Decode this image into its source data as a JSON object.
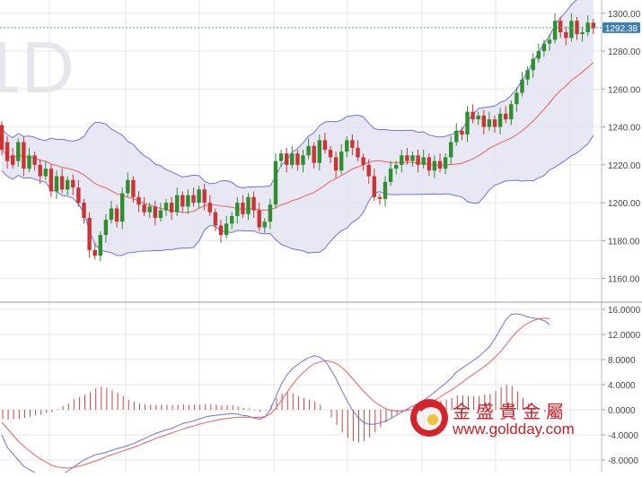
{
  "colors": {
    "up": "#2f8f2f",
    "down": "#cc3333",
    "band_line": "#6f6fe6",
    "band_fill": "#e4e4f2",
    "ma_mid": "#e86060",
    "grid": "#e6e6e6",
    "dotline": "#4caf7a",
    "current_bg": "#3d7fb5",
    "dif": "#6f6fe6",
    "dea": "#e86060",
    "hist": "#cc4444"
  },
  "watermark": {
    "text": "1D"
  },
  "logo": {
    "chinese": "金盛貴金屬",
    "url": "www.goldday.com"
  },
  "chart_data": [
    {
      "type": "candlestick",
      "ylim": [
        1148,
        1307
      ],
      "y_ticks": [
        "1300.00",
        "1280.00",
        "1260.00",
        "1240.00",
        "1220.00",
        "1200.00",
        "1180.00",
        "1160.00"
      ],
      "current_price": 1292.38,
      "current_label": "1292.38",
      "overlays": [
        "bollinger_bands",
        "moving_average"
      ],
      "candles": [
        [
          1241,
          1228
        ],
        [
          1232,
          1222
        ],
        [
          1225,
          1220
        ],
        [
          1222,
          1232
        ],
        [
          1232,
          1218
        ],
        [
          1218,
          1225
        ],
        [
          1225,
          1220
        ],
        [
          1220,
          1214
        ],
        [
          1214,
          1218
        ],
        [
          1218,
          1206
        ],
        [
          1206,
          1214
        ],
        [
          1214,
          1207
        ],
        [
          1207,
          1212
        ],
        [
          1212,
          1208
        ],
        [
          1208,
          1200
        ],
        [
          1200,
          1192
        ],
        [
          1192,
          1175
        ],
        [
          1175,
          1172
        ],
        [
          1172,
          1183
        ],
        [
          1183,
          1191
        ],
        [
          1191,
          1197
        ],
        [
          1197,
          1190
        ],
        [
          1190,
          1205
        ],
        [
          1205,
          1212
        ],
        [
          1212,
          1203
        ],
        [
          1203,
          1199
        ],
        [
          1199,
          1195
        ],
        [
          1195,
          1198
        ],
        [
          1198,
          1192
        ],
        [
          1192,
          1196
        ],
        [
          1196,
          1200
        ],
        [
          1200,
          1195
        ],
        [
          1195,
          1204
        ],
        [
          1204,
          1198
        ],
        [
          1198,
          1204
        ],
        [
          1204,
          1200
        ],
        [
          1200,
          1207
        ],
        [
          1207,
          1200
        ],
        [
          1200,
          1195
        ],
        [
          1195,
          1188
        ],
        [
          1188,
          1183
        ],
        [
          1183,
          1189
        ],
        [
          1189,
          1193
        ],
        [
          1193,
          1200
        ],
        [
          1200,
          1194
        ],
        [
          1194,
          1203
        ],
        [
          1203,
          1196
        ],
        [
          1196,
          1187
        ],
        [
          1187,
          1190
        ],
        [
          1190,
          1199
        ],
        [
          1199,
          1222
        ],
        [
          1222,
          1226
        ],
        [
          1226,
          1220
        ],
        [
          1220,
          1226
        ],
        [
          1226,
          1220
        ],
        [
          1220,
          1225
        ],
        [
          1225,
          1230
        ],
        [
          1230,
          1221
        ],
        [
          1221,
          1233
        ],
        [
          1233,
          1228
        ],
        [
          1228,
          1224
        ],
        [
          1224,
          1217
        ],
        [
          1217,
          1227
        ],
        [
          1227,
          1233
        ],
        [
          1233,
          1229
        ],
        [
          1229,
          1224
        ],
        [
          1224,
          1220
        ],
        [
          1220,
          1214
        ],
        [
          1214,
          1203
        ],
        [
          1203,
          1202
        ],
        [
          1202,
          1211
        ],
        [
          1211,
          1218
        ],
        [
          1218,
          1220
        ],
        [
          1220,
          1225
        ],
        [
          1225,
          1222
        ],
        [
          1222,
          1225
        ],
        [
          1225,
          1220
        ],
        [
          1220,
          1224
        ],
        [
          1224,
          1217
        ],
        [
          1217,
          1222
        ],
        [
          1222,
          1218
        ],
        [
          1218,
          1224
        ],
        [
          1224,
          1232
        ],
        [
          1232,
          1238
        ],
        [
          1238,
          1236
        ],
        [
          1236,
          1248
        ],
        [
          1248,
          1244
        ],
        [
          1244,
          1246
        ],
        [
          1246,
          1240
        ],
        [
          1240,
          1244
        ],
        [
          1244,
          1240
        ],
        [
          1240,
          1247
        ],
        [
          1247,
          1244
        ],
        [
          1244,
          1252
        ],
        [
          1252,
          1258
        ],
        [
          1258,
          1265
        ],
        [
          1265,
          1270
        ],
        [
          1270,
          1276
        ],
        [
          1276,
          1280
        ],
        [
          1280,
          1284
        ],
        [
          1284,
          1286
        ],
        [
          1286,
          1296
        ],
        [
          1296,
          1290
        ],
        [
          1290,
          1287
        ],
        [
          1287,
          1296
        ],
        [
          1296,
          1289
        ],
        [
          1289,
          1290
        ],
        [
          1290,
          1295
        ],
        [
          1295,
          1292
        ]
      ]
    },
    {
      "type": "macd",
      "ylim": [
        -10,
        17
      ],
      "y_ticks": [
        "16.0000",
        "12.0000",
        "8.0000",
        "4.0000",
        "0.0000",
        "-4.0000",
        "-8.0000"
      ],
      "series": [
        {
          "values": [
            -4,
            -6,
            -7,
            -8,
            -9,
            -9.5,
            -10,
            -10.5,
            -10.8,
            -11,
            -10.8,
            -10.3,
            -9.8,
            -9.2,
            -8.6,
            -8,
            -7.6,
            -7.2,
            -7,
            -6.8,
            -6.5,
            -6.2,
            -6,
            -5.7,
            -5.4,
            -5,
            -4.6,
            -4.2,
            -3.8,
            -3.5,
            -3.2,
            -3,
            -2.6,
            -2.2,
            -2,
            -1.8,
            -1.5,
            -1.2,
            -1,
            -0.9,
            -0.8,
            -0.7,
            -0.6,
            -0.7,
            -0.9,
            -1,
            -1.3,
            -1.5,
            -1.2,
            0,
            2,
            4,
            5.5,
            6.5,
            7.2,
            7.8,
            8.3,
            8.6,
            8.4,
            7.8,
            6.5,
            5,
            3.2,
            1.5,
            0,
            -1.2,
            -2,
            -2.3,
            -2.3,
            -2.1,
            -1.8,
            -1.4,
            -0.9,
            -0.4,
            0.1,
            0.6,
            1,
            1.5,
            2.1,
            2.8,
            3.5,
            4.2,
            5,
            6,
            6.6,
            7.2,
            7.8,
            8.4,
            9.2,
            10,
            11.3,
            12.8,
            14.3,
            15.2,
            15.3,
            15.1,
            14.8,
            14.6,
            14.5,
            14.2,
            13.6
          ],
          "color": "dif"
        },
        {
          "values": [
            -2,
            -3,
            -4,
            -5,
            -5.8,
            -6.5,
            -7.2,
            -7.8,
            -8.3,
            -8.8,
            -9.1,
            -9.2,
            -9.3,
            -9.2,
            -9,
            -8.8,
            -8.5,
            -8.2,
            -7.9,
            -7.5,
            -7.2,
            -6.9,
            -6.6,
            -6.3,
            -6,
            -5.7,
            -5.3,
            -5,
            -4.6,
            -4.3,
            -4,
            -3.7,
            -3.4,
            -3.1,
            -2.8,
            -2.6,
            -2.3,
            -2.1,
            -1.9,
            -1.7,
            -1.5,
            -1.4,
            -1.3,
            -1.2,
            -1.2,
            -1.2,
            -1.2,
            -1.2,
            -1.1,
            -0.7,
            0.2,
            1.4,
            2.7,
            3.9,
            5,
            5.9,
            6.7,
            7.3,
            7.6,
            7.8,
            7.7,
            7.4,
            6.8,
            6,
            5,
            4,
            3,
            2.1,
            1.3,
            0.7,
            0.2,
            -0.1,
            -0.2,
            -0.2,
            -0.1,
            0.1,
            0.4,
            0.7,
            1.1,
            1.5,
            2,
            2.6,
            3.1,
            3.7,
            4.3,
            5,
            5.6,
            6.2,
            6.8,
            7.5,
            8.3,
            9.2,
            10.3,
            11.4,
            12.4,
            13.2,
            13.8,
            14.2,
            14.5,
            14.6,
            14.5
          ],
          "color": "dea"
        }
      ],
      "histogram": [
        -1.5,
        -1.6,
        -1.5,
        -1.5,
        -1.3,
        -1.1,
        -0.9,
        -0.8,
        -0.5,
        -0.4,
        0.1,
        0.6,
        1,
        1.7,
        2,
        2.4,
        2.8,
        3.4,
        3.7,
        3.5,
        3.1,
        2.7,
        2.2,
        1.6,
        1.3,
        1,
        0.9,
        0.8,
        0.8,
        0.8,
        0.8,
        0.7,
        0.8,
        0.9,
        0.8,
        0.8,
        0.8,
        0.9,
        0.9,
        0.8,
        0.7,
        0.7,
        0.7,
        0.5,
        0.3,
        0.2,
        -0.1,
        -0.3,
        -0.1,
        0.7,
        1.8,
        2.6,
        2.8,
        2.6,
        2.2,
        1.9,
        1.6,
        1.3,
        0.8,
        0,
        -1.2,
        -2.4,
        -3.6,
        -4.5,
        -5,
        -5.2,
        -5,
        -4.4,
        -3.6,
        -2.8,
        -2,
        -1.3,
        -0.7,
        -0.2,
        0.2,
        0.5,
        0.6,
        0.8,
        1,
        1.3,
        1.5,
        1.6,
        1.9,
        2.3,
        2.3,
        2.2,
        2.2,
        2.2,
        2.4,
        2.5,
        3,
        3.6,
        4,
        3.8,
        2.9,
        1.9,
        1,
        0.4,
        0,
        -0.4,
        -0.9
      ]
    }
  ]
}
